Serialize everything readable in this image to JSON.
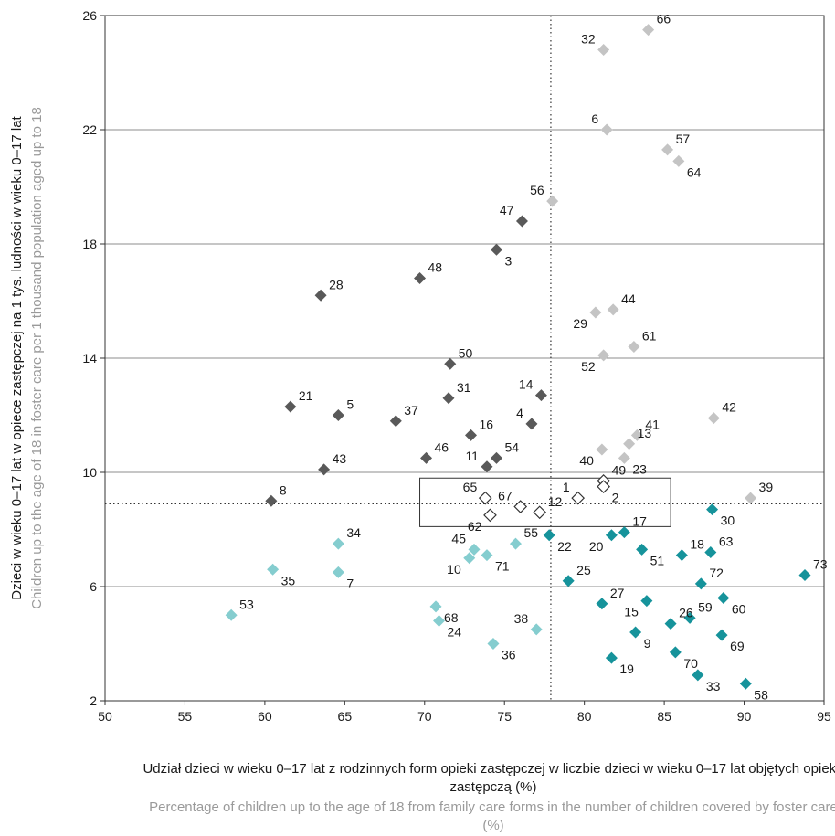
{
  "chart_data": {
    "type": "scatter",
    "title": "",
    "xlabel": "Udział dzieci w wieku 0–17 lat z rodzinnych form opieki zastępczej w liczbie dzieci w wieku 0–17 lat objętych opieką zastępczą (%)",
    "xlabel_en": "Percentage of children up to the age of 18 from family care forms in the number of children covered by foster care (%)",
    "ylabel": "Dzieci w wieku 0–17 lat w opiece zastępczej na 1 tys. ludności w wieku 0–17 lat",
    "ylabel_en": "Children up to the age of 18 in foster care per 1 thousand population aged up to 18",
    "xlim": [
      50,
      95
    ],
    "ylim": [
      2,
      26
    ],
    "x_ticks": [
      50,
      55,
      60,
      65,
      70,
      75,
      80,
      85,
      90,
      95
    ],
    "y_ticks": [
      2,
      6,
      10,
      14,
      18,
      22,
      26
    ],
    "horizontal_gridlines": [
      6,
      10,
      14,
      18,
      22
    ],
    "reference_lines": {
      "x": 77.9,
      "y": 8.9
    },
    "highlight_box": {
      "x": [
        69.7,
        85.4
      ],
      "y": [
        8.1,
        9.8
      ]
    },
    "colors": {
      "dark": "#595959",
      "light_gray": "#c4c4c4",
      "light_teal": "#85cdcf",
      "teal": "#16939b",
      "open": "#ffffff",
      "open_stroke": "#333333",
      "grid": "#8c8c8c",
      "ref": "#333333"
    },
    "groups": [
      {
        "color": "dark",
        "points": [
          {
            "label": "28",
            "x": 63.5,
            "y": 16.2
          },
          {
            "label": "48",
            "x": 69.7,
            "y": 16.8
          },
          {
            "label": "47",
            "x": 76.1,
            "y": 18.8
          },
          {
            "label": "3",
            "x": 74.5,
            "y": 17.8
          },
          {
            "label": "50",
            "x": 71.6,
            "y": 13.8
          },
          {
            "label": "21",
            "x": 61.6,
            "y": 12.3
          },
          {
            "label": "5",
            "x": 64.6,
            "y": 12.0
          },
          {
            "label": "37",
            "x": 68.2,
            "y": 11.8
          },
          {
            "label": "31",
            "x": 71.5,
            "y": 12.6
          },
          {
            "label": "14",
            "x": 77.3,
            "y": 12.7
          },
          {
            "label": "16",
            "x": 72.9,
            "y": 11.3
          },
          {
            "label": "4",
            "x": 76.7,
            "y": 11.7
          },
          {
            "label": "46",
            "x": 70.1,
            "y": 10.5
          },
          {
            "label": "54",
            "x": 74.5,
            "y": 10.5
          },
          {
            "label": "11",
            "x": 73.9,
            "y": 10.2
          },
          {
            "label": "43",
            "x": 63.7,
            "y": 10.1
          },
          {
            "label": "8",
            "x": 60.4,
            "y": 9.0
          }
        ]
      },
      {
        "color": "light_gray",
        "points": [
          {
            "label": "32",
            "x": 81.2,
            "y": 24.8
          },
          {
            "label": "66",
            "x": 84.0,
            "y": 25.5
          },
          {
            "label": "6",
            "x": 81.4,
            "y": 22.0
          },
          {
            "label": "57",
            "x": 85.2,
            "y": 21.3
          },
          {
            "label": "64",
            "x": 85.9,
            "y": 20.9
          },
          {
            "label": "56",
            "x": 78.0,
            "y": 19.5
          },
          {
            "label": "29",
            "x": 80.7,
            "y": 15.6
          },
          {
            "label": "44",
            "x": 81.8,
            "y": 15.7
          },
          {
            "label": "52",
            "x": 81.2,
            "y": 14.1
          },
          {
            "label": "61",
            "x": 83.1,
            "y": 14.4
          },
          {
            "label": "42",
            "x": 88.1,
            "y": 11.9
          },
          {
            "label": "40",
            "x": 81.1,
            "y": 10.8
          },
          {
            "label": "13",
            "x": 82.8,
            "y": 11.0
          },
          {
            "label": "41",
            "x": 83.3,
            "y": 11.3
          },
          {
            "label": "23",
            "x": 82.5,
            "y": 10.5
          },
          {
            "label": "39",
            "x": 90.4,
            "y": 9.1
          }
        ]
      },
      {
        "color": "teal",
        "points": [
          {
            "label": "30",
            "x": 88.0,
            "y": 8.7
          },
          {
            "label": "22",
            "x": 77.8,
            "y": 7.8
          },
          {
            "label": "20",
            "x": 81.7,
            "y": 7.8
          },
          {
            "label": "17",
            "x": 82.5,
            "y": 7.9
          },
          {
            "label": "51",
            "x": 83.6,
            "y": 7.3
          },
          {
            "label": "18",
            "x": 86.1,
            "y": 7.1
          },
          {
            "label": "63",
            "x": 87.9,
            "y": 7.2
          },
          {
            "label": "73",
            "x": 93.8,
            "y": 6.4
          },
          {
            "label": "25",
            "x": 79.0,
            "y": 6.2
          },
          {
            "label": "72",
            "x": 87.3,
            "y": 6.1
          },
          {
            "label": "60",
            "x": 88.7,
            "y": 5.6
          },
          {
            "label": "27",
            "x": 81.1,
            "y": 5.4
          },
          {
            "label": "15",
            "x": 83.9,
            "y": 5.5
          },
          {
            "label": "26",
            "x": 85.4,
            "y": 4.7
          },
          {
            "label": "59",
            "x": 86.6,
            "y": 4.9
          },
          {
            "label": "69",
            "x": 88.6,
            "y": 4.3
          },
          {
            "label": "9",
            "x": 83.2,
            "y": 4.4
          },
          {
            "label": "70",
            "x": 85.7,
            "y": 3.7
          },
          {
            "label": "19",
            "x": 81.7,
            "y": 3.5
          },
          {
            "label": "33",
            "x": 87.1,
            "y": 2.9
          },
          {
            "label": "58",
            "x": 90.1,
            "y": 2.6
          }
        ]
      },
      {
        "color": "light_teal",
        "points": [
          {
            "label": "34",
            "x": 64.6,
            "y": 7.5
          },
          {
            "label": "35",
            "x": 60.5,
            "y": 6.6
          },
          {
            "label": "7",
            "x": 64.6,
            "y": 6.5
          },
          {
            "label": "45",
            "x": 73.1,
            "y": 7.3
          },
          {
            "label": "10",
            "x": 72.8,
            "y": 7.0
          },
          {
            "label": "71",
            "x": 73.9,
            "y": 7.1
          },
          {
            "label": "55",
            "x": 75.7,
            "y": 7.5
          },
          {
            "label": "53",
            "x": 57.9,
            "y": 5.0
          },
          {
            "label": "68",
            "x": 70.7,
            "y": 5.3
          },
          {
            "label": "24",
            "x": 70.9,
            "y": 4.8
          },
          {
            "label": "38",
            "x": 77.0,
            "y": 4.5
          },
          {
            "label": "36",
            "x": 74.3,
            "y": 4.0
          }
        ]
      },
      {
        "color": "open",
        "points": [
          {
            "label": "65",
            "x": 73.8,
            "y": 9.1
          },
          {
            "label": "67",
            "x": 76.0,
            "y": 8.8
          },
          {
            "label": "12",
            "x": 77.2,
            "y": 8.6
          },
          {
            "label": "62",
            "x": 74.1,
            "y": 8.5
          },
          {
            "label": "1",
            "x": 79.6,
            "y": 9.1
          },
          {
            "label": "49",
            "x": 81.2,
            "y": 9.7
          },
          {
            "label": "2",
            "x": 81.2,
            "y": 9.5
          }
        ]
      }
    ]
  }
}
